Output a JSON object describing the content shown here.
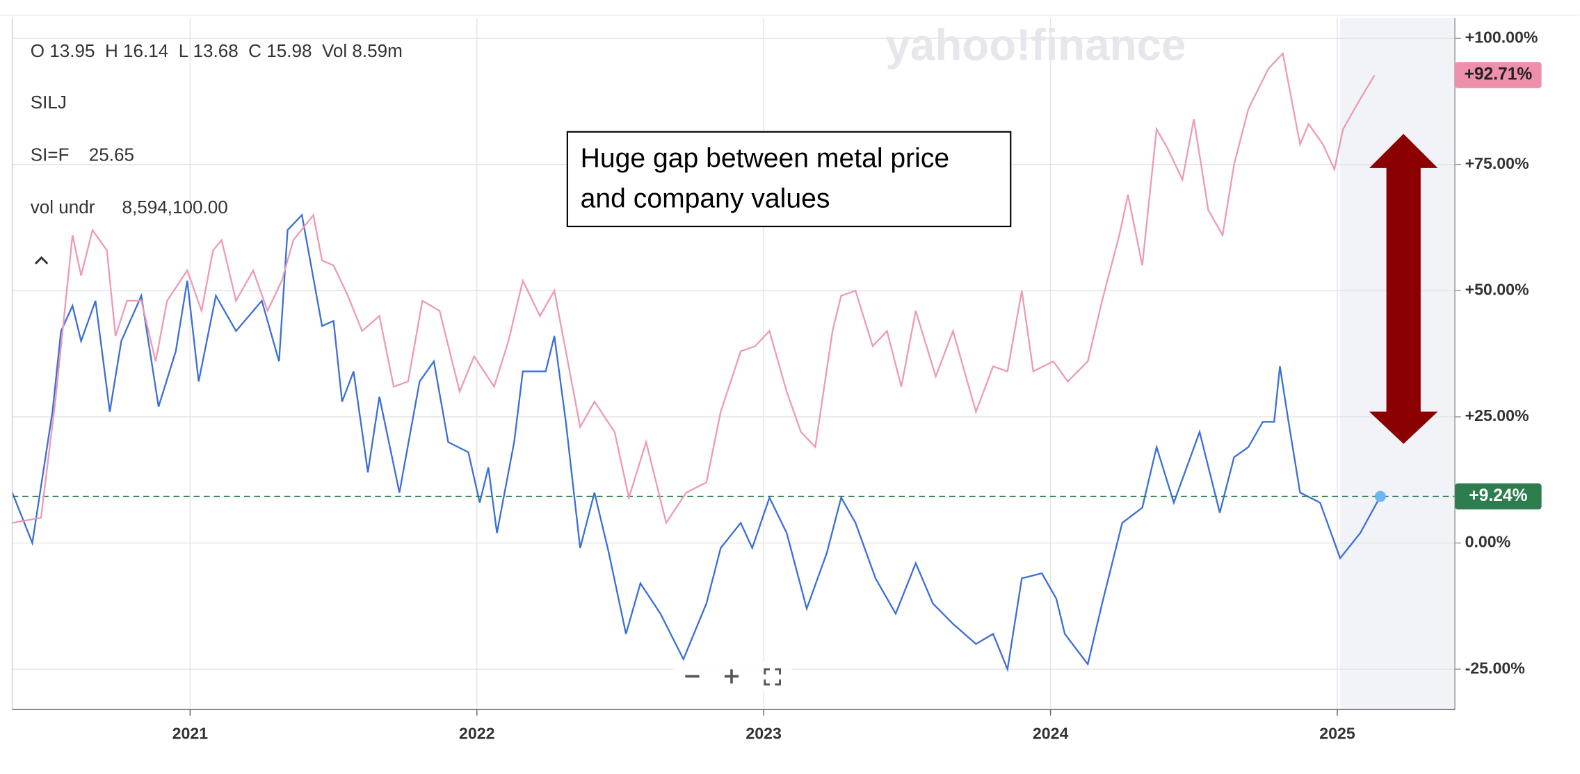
{
  "chart_data": {
    "type": "line",
    "watermark": "yahoo!finance",
    "header": "O 13.95  H 16.14  L 13.68  C 15.98  Vol 8.59m",
    "legend_value": "25.65",
    "volume_label": "vol undr",
    "volume_value": "8,594,100.00",
    "annotation": [
      "Huge gap between metal price",
      "and company values"
    ],
    "xlim": [
      2020.38,
      2025.41
    ],
    "xticks": [
      2021,
      2022,
      2023,
      2024,
      2025
    ],
    "ylim": [
      -33,
      104
    ],
    "yticks": [
      {
        "value": -25,
        "label": "-25.00%"
      },
      {
        "value": 0,
        "label": "0.00%"
      },
      {
        "value": 25,
        "label": "+25.00%"
      },
      {
        "value": 50,
        "label": "+50.00%"
      },
      {
        "value": 75,
        "label": "+75.00%"
      },
      {
        "value": 100,
        "label": "+100.00%"
      }
    ],
    "grid": true,
    "series": [
      {
        "name": "SILJ",
        "color": "#3b6fd8",
        "last_label": "+9.24%",
        "label_color": "#2e7d4f",
        "x": [
          2020.38,
          2020.45,
          2020.52,
          2020.55,
          2020.59,
          2020.62,
          2020.67,
          2020.72,
          2020.76,
          2020.83,
          2020.89,
          2020.95,
          2020.99,
          2021.03,
          2021.09,
          2021.16,
          2021.25,
          2021.31,
          2021.34,
          2021.39,
          2021.46,
          2021.5,
          2021.53,
          2021.57,
          2021.62,
          2021.66,
          2021.73,
          2021.8,
          2021.85,
          2021.9,
          2021.97,
          2022.01,
          2022.04,
          2022.07,
          2022.13,
          2022.16,
          2022.24,
          2022.27,
          2022.31,
          2022.36,
          2022.41,
          2022.46,
          2022.52,
          2022.57,
          2022.64,
          2022.72,
          2022.8,
          2022.85,
          2022.92,
          2022.96,
          2023.02,
          2023.08,
          2023.15,
          2023.22,
          2023.27,
          2023.32,
          2023.39,
          2023.46,
          2023.53,
          2023.59,
          2023.66,
          2023.74,
          2023.8,
          2023.85,
          2023.9,
          2023.97,
          2024.02,
          2024.05,
          2024.13,
          2024.18,
          2024.25,
          2024.32,
          2024.37,
          2024.43,
          2024.52,
          2024.59,
          2024.64,
          2024.69,
          2024.74,
          2024.78,
          2024.8,
          2024.83,
          2024.87,
          2024.94,
          2025.01,
          2025.08,
          2025.15
        ],
        "values": [
          10,
          0,
          26,
          42,
          47,
          40,
          48,
          26,
          40,
          49,
          27,
          38,
          52,
          32,
          49,
          42,
          48,
          36,
          62,
          65,
          43,
          44,
          28,
          34,
          14,
          29,
          10,
          32,
          36,
          20,
          18,
          8,
          15,
          2,
          20,
          34,
          34,
          41,
          24,
          -1,
          10,
          -2,
          -18,
          -8,
          -14,
          -23,
          -12,
          -1,
          4,
          -1,
          9,
          2,
          -13,
          -2,
          9,
          4,
          -7,
          -14,
          -4,
          -12,
          -16,
          -20,
          -18,
          -25,
          -7,
          -6,
          -11,
          -18,
          -24,
          -12,
          4,
          7,
          19,
          8,
          22,
          6,
          17,
          19,
          24,
          24,
          35,
          24,
          10,
          8,
          -3,
          2,
          9.24
        ]
      },
      {
        "name": "SI=F",
        "color": "#ee9ab5",
        "last_label": "+92.71%",
        "label_color": "#ee8fab",
        "x": [
          2020.38,
          2020.48,
          2020.53,
          2020.59,
          2020.62,
          2020.66,
          2020.71,
          2020.74,
          2020.78,
          2020.83,
          2020.88,
          2020.92,
          2020.99,
          2021.04,
          2021.08,
          2021.11,
          2021.16,
          2021.22,
          2021.27,
          2021.32,
          2021.36,
          2021.43,
          2021.46,
          2021.5,
          2021.55,
          2021.6,
          2021.66,
          2021.71,
          2021.76,
          2021.81,
          2021.87,
          2021.94,
          2021.99,
          2022.06,
          2022.11,
          2022.16,
          2022.22,
          2022.27,
          2022.31,
          2022.36,
          2022.41,
          2022.48,
          2022.53,
          2022.59,
          2022.66,
          2022.73,
          2022.8,
          2022.85,
          2022.92,
          2022.97,
          2023.02,
          2023.08,
          2023.13,
          2023.18,
          2023.24,
          2023.27,
          2023.32,
          2023.38,
          2023.43,
          2023.48,
          2023.53,
          2023.6,
          2023.66,
          2023.74,
          2023.8,
          2023.85,
          2023.9,
          2023.94,
          2024.01,
          2024.06,
          2024.13,
          2024.18,
          2024.24,
          2024.27,
          2024.32,
          2024.37,
          2024.41,
          2024.46,
          2024.5,
          2024.55,
          2024.6,
          2024.64,
          2024.69,
          2024.76,
          2024.81,
          2024.87,
          2024.9,
          2024.95,
          2024.99,
          2025.02,
          2025.08,
          2025.13
        ],
        "values": [
          4,
          5,
          28,
          61,
          53,
          62,
          58,
          41,
          48,
          48,
          36,
          48,
          54,
          46,
          58,
          60,
          48,
          54,
          46,
          52,
          60,
          65,
          56,
          55,
          49,
          42,
          45,
          31,
          32,
          48,
          46,
          30,
          37,
          31,
          40,
          52,
          45,
          50,
          38,
          23,
          28,
          22,
          9,
          20,
          4,
          10,
          12,
          26,
          38,
          39,
          42,
          30,
          22,
          19,
          42,
          49,
          50,
          39,
          42,
          31,
          46,
          33,
          42,
          26,
          35,
          34,
          50,
          34,
          36,
          32,
          36,
          48,
          61,
          69,
          55,
          82,
          78,
          72,
          84,
          66,
          61,
          75,
          86,
          94,
          97,
          79,
          83,
          79,
          74,
          82,
          88,
          92.71
        ]
      }
    ]
  }
}
